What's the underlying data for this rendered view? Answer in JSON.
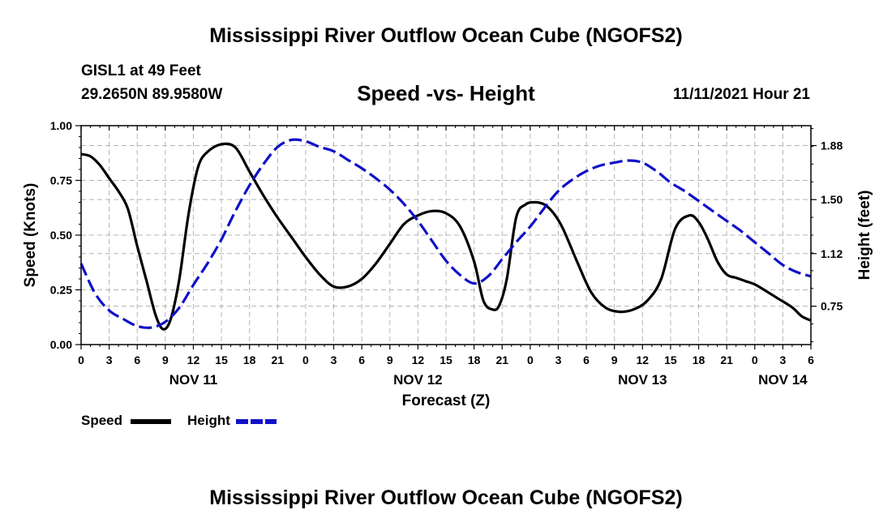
{
  "title": "Mississippi River Outflow Ocean Cube (NGOFS2)",
  "title_repeat": "Mississippi River Outflow Ocean Cube (NGOFS2)",
  "station": {
    "name": "GISL1 at 49 Feet",
    "coords": "29.2650N  89.9580W"
  },
  "issue_time": "11/11/2021 Hour 21",
  "chart_data": {
    "type": "line",
    "title": "Speed -vs- Height",
    "xlabel": "Forecast (Z)",
    "ylabel": "Speed (Knots)",
    "y2label": "Height (feet)",
    "xlim": [
      0,
      78
    ],
    "ylim": [
      0,
      1.0
    ],
    "y2lim": [
      0.48,
      2.02
    ],
    "grid": true,
    "x_ticks": [
      0,
      3,
      6,
      9,
      12,
      15,
      18,
      21,
      24,
      27,
      30,
      33,
      36,
      39,
      42,
      45,
      48,
      51,
      54,
      57,
      60,
      63,
      66,
      69,
      72,
      75,
      78
    ],
    "x_tick_labels": [
      "0",
      "3",
      "6",
      "9",
      "12",
      "15",
      "18",
      "21",
      "0",
      "3",
      "6",
      "9",
      "12",
      "15",
      "18",
      "21",
      "0",
      "3",
      "6",
      "9",
      "12",
      "15",
      "18",
      "21",
      "0",
      "3",
      "6"
    ],
    "day_labels": [
      {
        "x": 12,
        "label": "NOV 11"
      },
      {
        "x": 36,
        "label": "NOV 12"
      },
      {
        "x": 60,
        "label": "NOV 13"
      },
      {
        "x": 75,
        "label": "NOV 14"
      }
    ],
    "y_ticks": [
      0.0,
      0.25,
      0.5,
      0.75,
      1.0
    ],
    "y_tick_labels": [
      "0.00",
      "0.25",
      "0.50",
      "0.75",
      "1.00"
    ],
    "y2_ticks": [
      0.75,
      1.12,
      1.5,
      1.88
    ],
    "y2_tick_labels": [
      "0.75",
      "1.12",
      "1.50",
      "1.88"
    ],
    "series": [
      {
        "name": "Speed",
        "axis": "left",
        "color": "#000000",
        "style": "solid",
        "x": [
          0,
          1,
          2,
          3,
          4,
          5,
          6,
          7,
          8,
          8.8,
          9.6,
          10.5,
          11.5,
          12.5,
          13.5,
          15,
          16.5,
          18,
          19.5,
          21,
          22.5,
          24,
          25.5,
          27,
          28.5,
          30,
          31.5,
          33,
          34.5,
          36,
          37.5,
          39,
          40.5,
          42,
          43,
          44,
          44.7,
          45.5,
          46.5,
          47.5,
          48.5,
          49.5,
          50.5,
          51.5,
          53,
          54.5,
          56,
          57.5,
          59,
          60.5,
          62,
          63.5,
          65,
          66,
          67,
          68,
          69,
          70,
          71,
          72,
          73,
          74.5,
          76,
          77,
          78
        ],
        "values": [
          0.87,
          0.86,
          0.82,
          0.76,
          0.7,
          0.62,
          0.45,
          0.29,
          0.13,
          0.07,
          0.12,
          0.3,
          0.6,
          0.81,
          0.88,
          0.915,
          0.9,
          0.79,
          0.68,
          0.58,
          0.49,
          0.4,
          0.32,
          0.265,
          0.265,
          0.3,
          0.37,
          0.46,
          0.55,
          0.59,
          0.61,
          0.6,
          0.54,
          0.38,
          0.2,
          0.16,
          0.18,
          0.3,
          0.58,
          0.64,
          0.65,
          0.64,
          0.6,
          0.53,
          0.38,
          0.24,
          0.17,
          0.15,
          0.16,
          0.2,
          0.3,
          0.53,
          0.59,
          0.56,
          0.48,
          0.38,
          0.32,
          0.305,
          0.29,
          0.275,
          0.25,
          0.21,
          0.17,
          0.13,
          0.11
        ]
      },
      {
        "name": "Height",
        "axis": "right",
        "color": "#1010c8",
        "style": "dashed",
        "x": [
          0,
          1.5,
          3,
          4.5,
          6,
          7.5,
          9,
          10.5,
          12,
          13.5,
          15,
          16.5,
          18,
          19.5,
          21,
          22.5,
          24,
          25.5,
          27,
          28.5,
          30,
          31.5,
          33,
          34.5,
          36,
          37.5,
          39,
          40.5,
          42,
          43.5,
          45,
          46.5,
          48,
          49.5,
          51,
          52.5,
          54,
          55.5,
          57,
          58.5,
          60,
          61.5,
          63,
          64.5,
          66,
          67.5,
          69,
          70.5,
          72,
          73.5,
          75,
          76.5,
          78
        ],
        "values": [
          1.05,
          0.84,
          0.72,
          0.66,
          0.61,
          0.6,
          0.64,
          0.74,
          0.9,
          1.05,
          1.22,
          1.42,
          1.6,
          1.75,
          1.87,
          1.92,
          1.91,
          1.87,
          1.84,
          1.78,
          1.72,
          1.65,
          1.57,
          1.47,
          1.35,
          1.21,
          1.07,
          0.97,
          0.91,
          0.96,
          1.08,
          1.2,
          1.31,
          1.44,
          1.56,
          1.64,
          1.7,
          1.74,
          1.76,
          1.775,
          1.76,
          1.7,
          1.62,
          1.56,
          1.49,
          1.42,
          1.35,
          1.28,
          1.2,
          1.12,
          1.04,
          0.99,
          0.96
        ]
      }
    ]
  },
  "legend": {
    "speed_label": "Speed",
    "height_label": "Height"
  }
}
